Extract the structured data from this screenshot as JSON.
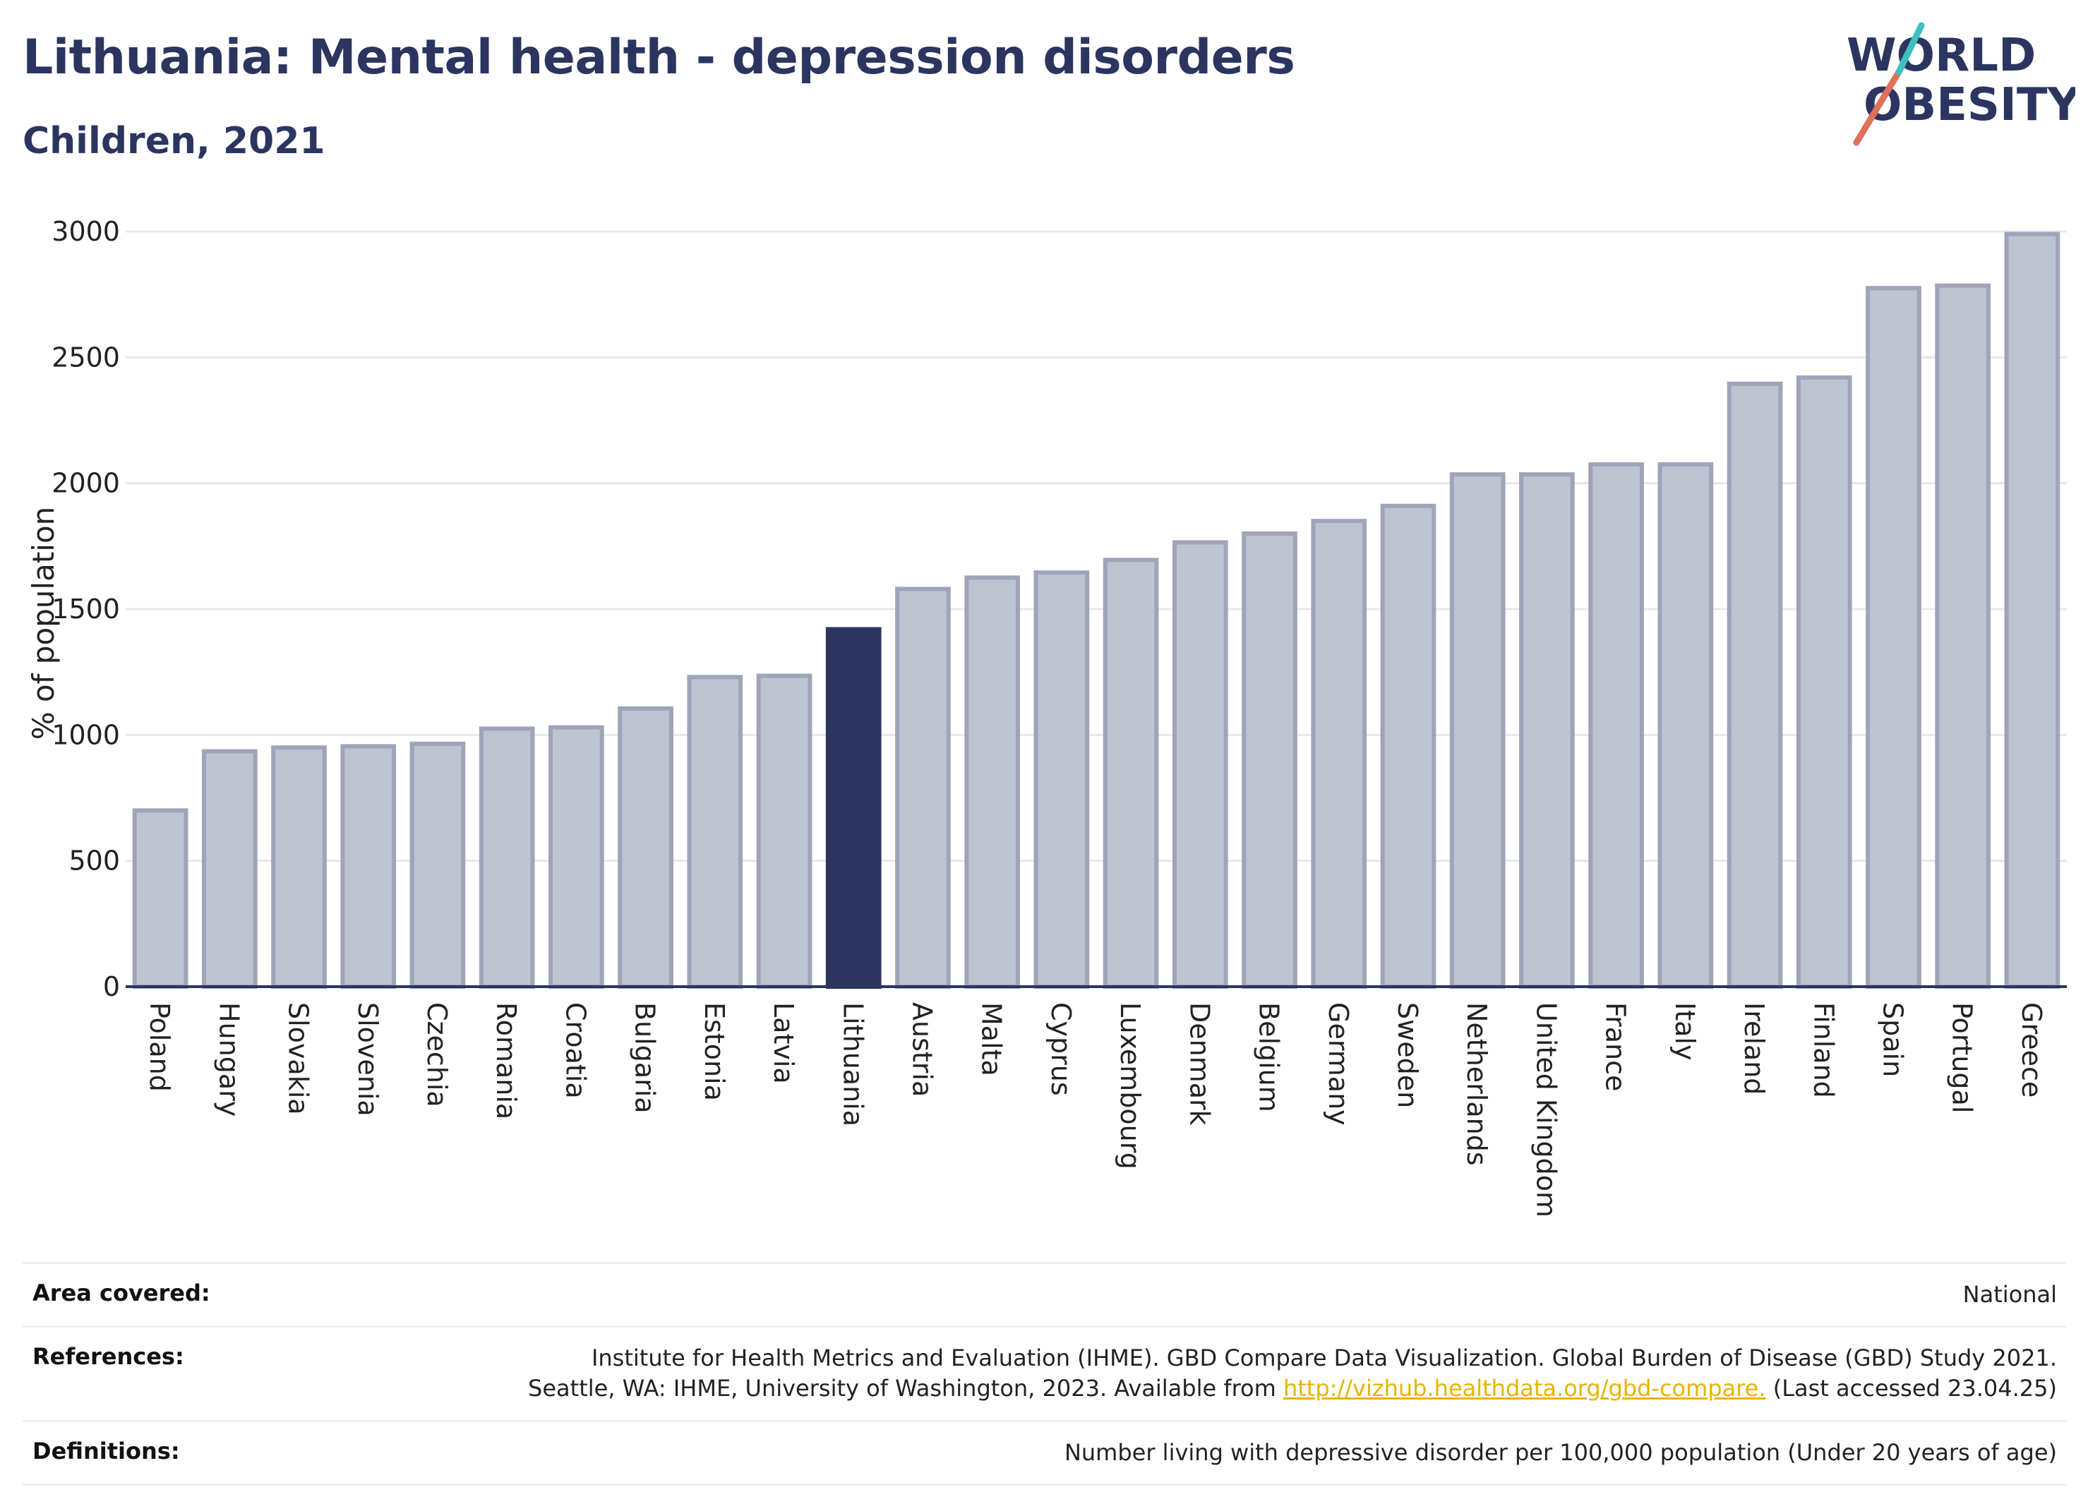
{
  "header": {
    "title": "Lithuania: Mental health - depression disorders",
    "subtitle": "Children, 2021"
  },
  "logo": {
    "line1": "WORLD",
    "line2": "OBESITY"
  },
  "chart_data": {
    "type": "bar",
    "ylabel": "% of population",
    "ylim": [
      0,
      3000
    ],
    "yticks": [
      0,
      500,
      1000,
      1500,
      2000,
      2500,
      3000
    ],
    "grid": true,
    "highlight": "Lithuania",
    "colors": {
      "bar": "#bfc3d0",
      "bar_edge": "#9ea4b9",
      "highlight": "#2b3560",
      "axis": "#2b3560"
    },
    "categories": [
      "Poland",
      "Hungary",
      "Slovakia",
      "Slovenia",
      "Czechia",
      "Romania",
      "Croatia",
      "Bulgaria",
      "Estonia",
      "Latvia",
      "Lithuania",
      "Austria",
      "Malta",
      "Cyprus",
      "Luxembourg",
      "Denmark",
      "Belgium",
      "Germany",
      "Sweden",
      "Netherlands",
      "United Kingdom",
      "France",
      "Italy",
      "Ireland",
      "Finland",
      "Spain",
      "Portugal",
      "Greece"
    ],
    "values": [
      700,
      935,
      950,
      955,
      965,
      1025,
      1030,
      1105,
      1230,
      1235,
      1420,
      1580,
      1625,
      1645,
      1695,
      1765,
      1800,
      1850,
      1910,
      2035,
      2035,
      2075,
      2075,
      2395,
      2420,
      2775,
      2785,
      2990
    ]
  },
  "info": {
    "area_label": "Area covered:",
    "area_value": "National",
    "references_label": "References:",
    "references_line1": "Institute for Health Metrics and Evaluation (IHME). GBD Compare Data Visualization. Global Burden of Disease (GBD) Study 2021.",
    "references_line2_prefix": "Seattle, WA: IHME, University of Washington, 2023. Available from",
    "references_link": "http://vizhub.healthdata.org/gbd-compare.",
    "references_suffix": "(Last accessed 23.04.25)",
    "definitions_label": "Definitions:",
    "definitions_value": "Number living with depressive disorder per 100,000 population (Under 20 years of age)"
  }
}
